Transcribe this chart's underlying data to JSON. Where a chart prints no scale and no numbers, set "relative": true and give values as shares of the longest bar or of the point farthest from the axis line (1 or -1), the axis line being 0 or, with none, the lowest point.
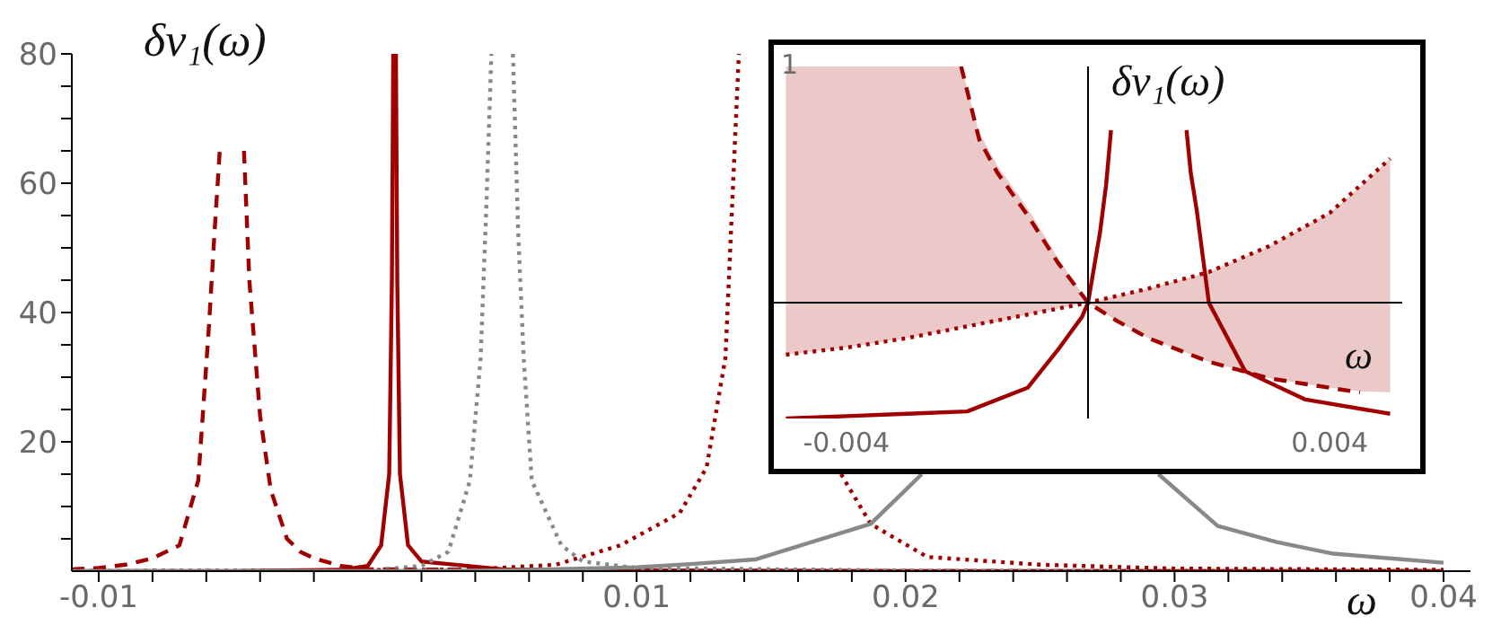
{
  "chart_data": [
    {
      "type": "line",
      "xlabel": "ω",
      "ylabel": "δν₁(ω)",
      "xlim": [
        -0.011,
        0.041
      ],
      "ylim": [
        0,
        80
      ],
      "xticks": [
        -0.01,
        {
          "value": -0.008,
          "label": null
        },
        {
          "value": -0.006,
          "label": null
        },
        {
          "value": -0.004,
          "label": null
        },
        {
          "value": -0.002,
          "label": null
        },
        {
          "value": 0.002,
          "label": null
        },
        {
          "value": 0.004,
          "label": null
        },
        {
          "value": 0.006,
          "label": null
        },
        {
          "value": 0.008,
          "label": null
        },
        0.01,
        {
          "value": 0.012,
          "label": null
        },
        {
          "value": 0.014,
          "label": null
        },
        {
          "value": 0.016,
          "label": null
        },
        {
          "value": 0.018,
          "label": null
        },
        0.02,
        {
          "value": 0.022,
          "label": null
        },
        {
          "value": 0.024,
          "label": null
        },
        {
          "value": 0.026,
          "label": null
        },
        {
          "value": 0.028,
          "label": null
        },
        0.03,
        {
          "value": 0.032,
          "label": null
        },
        {
          "value": 0.034,
          "label": null
        },
        {
          "value": 0.036,
          "label": null
        },
        {
          "value": 0.038,
          "label": null
        },
        0.04
      ],
      "yticks": [
        {
          "value": 5,
          "label": null
        },
        {
          "value": 10,
          "label": null
        },
        {
          "value": 15,
          "label": null
        },
        20,
        {
          "value": 25,
          "label": null
        },
        {
          "value": 30,
          "label": null
        },
        {
          "value": 35,
          "label": null
        },
        40,
        {
          "value": 45,
          "label": null
        },
        {
          "value": 50,
          "label": null
        },
        {
          "value": 55,
          "label": null
        },
        60,
        {
          "value": 65,
          "label": null
        },
        {
          "value": 70,
          "label": null
        },
        {
          "value": 75,
          "label": null
        },
        80
      ],
      "series": [
        {
          "color": "#a00000",
          "line_style": "dashed",
          "x": [
            -0.011,
            -0.01,
            -0.009,
            -0.008,
            -0.007,
            -0.0063,
            -0.0059,
            -0.0057,
            -0.0055,
            -0.005,
            -0.0046,
            -0.0044,
            -0.004,
            -0.0036,
            -0.003,
            -0.0025,
            -0.002,
            -0.001,
            0,
            0.01,
            0.02,
            0.03,
            0.04
          ],
          "values": [
            0.3,
            0.5,
            1,
            2,
            4,
            14,
            38,
            52,
            65,
            null,
            65,
            45,
            24,
            12.5,
            5,
            3,
            2,
            0.8,
            0.3,
            0.1,
            0,
            0,
            0
          ]
        },
        {
          "color": "#a00000",
          "line_style": "solid",
          "x": [
            -0.011,
            -0.005,
            -0.001,
            0,
            0.0005,
            0.0008,
            0.0009,
            0.00095,
            0.00105,
            0.0011,
            0.0012,
            0.0015,
            0.002,
            0.005,
            0.01,
            0.02,
            0.03,
            0.04
          ],
          "values": [
            0,
            0,
            0.2,
            0.8,
            4,
            15,
            45,
            80,
            80,
            45,
            15,
            4,
            1.5,
            0.3,
            0.1,
            0,
            0,
            0
          ]
        },
        {
          "color": "#888888",
          "line_style": "dotted",
          "x": [
            -0.011,
            0,
            0.002,
            0.003,
            0.0038,
            0.0042,
            0.0044,
            0.0046,
            0.005,
            0.0054,
            0.0056,
            0.0058,
            0.0061,
            0.0072,
            0.008,
            0.01,
            0.02,
            0.03,
            0.04
          ],
          "values": [
            0,
            0.1,
            0.8,
            3,
            14,
            33,
            55,
            80,
            null,
            80,
            52,
            33,
            14,
            4,
            1.5,
            0.5,
            0.1,
            0,
            0
          ]
        },
        {
          "color": "#a00000",
          "line_style": "dotted",
          "x": [
            -0.011,
            0,
            0.004,
            0.007,
            0.0094,
            0.0116,
            0.0126,
            0.0133,
            0.0138,
            0.015,
            0.0176,
            0.0187,
            0.0208,
            0.025,
            0.03,
            0.04
          ],
          "values": [
            0,
            0.1,
            0.3,
            1,
            4,
            9,
            16,
            33,
            80,
            null,
            15,
            7.3,
            2.2,
            1,
            0.4,
            0.2
          ]
        },
        {
          "color": "#888888",
          "line_style": "solid",
          "x": [
            -0.011,
            0,
            0.005,
            0.01,
            0.012,
            0.0144,
            0.0165,
            0.0187,
            0.0206,
            0.025,
            0.0294,
            0.0316,
            0.0338,
            0.0359,
            0.04
          ],
          "values": [
            0,
            0,
            0.1,
            0.6,
            1.1,
            1.8,
            4.5,
            7.3,
            15,
            null,
            15,
            7,
            4.5,
            2.7,
            1.3
          ]
        }
      ]
    },
    {
      "type": "line",
      "relative": true,
      "xlabel": "ω",
      "ylabel": "δν₁(ω)",
      "annotations": [
        "1"
      ],
      "xlim": [
        -0.0052,
        0.0052
      ],
      "xticks": [
        -0.004,
        0.004
      ],
      "series": [
        {
          "color": "#a00000",
          "line_style": "dashed",
          "x": [
            -0.005,
            -0.004,
            -0.003,
            -0.0021,
            -0.0018,
            -0.0015,
            -0.001,
            -0.0005,
            0,
            0.0005,
            0.001,
            0.002,
            0.003,
            0.004,
            0.0045,
            0.005
          ],
          "values": [
            null,
            null,
            null,
            1,
            0.69,
            0.55,
            0.37,
            0.17,
            0,
            -0.08,
            -0.15,
            -0.25,
            -0.32,
            -0.36,
            -0.38,
            null
          ],
          "lower": [
            -0.22,
            -0.19,
            -0.15,
            -0.105,
            -0.09,
            -0.08,
            -0.05,
            -0.025,
            0,
            -0.08,
            -0.15,
            -0.25,
            -0.32,
            -0.36,
            -0.375,
            -0.38
          ],
          "upper": [
            1,
            1,
            1,
            1,
            0.72,
            0.58,
            0.4,
            0.19,
            0,
            0.03,
            0.06,
            0.13,
            0.24,
            0.38,
            0.49,
            0.61
          ]
        },
        {
          "color": "#a00000",
          "line_style": "dotted",
          "x": [
            -0.005,
            -0.004,
            -0.003,
            -0.002,
            -0.001,
            0,
            0.001,
            0.002,
            0.003,
            0.004,
            0.005
          ],
          "values": [
            -0.22,
            -0.19,
            -0.15,
            -0.1,
            -0.05,
            0,
            0.06,
            0.13,
            0.24,
            0.38,
            0.61
          ]
        },
        {
          "color": "#a00000",
          "line_style": "solid",
          "x": [
            -0.005,
            -0.004,
            -0.003,
            -0.002,
            -0.001,
            -0.0005,
            -0.0003,
            -0.0001,
            0,
            0.0002,
            0.0003,
            0.00038,
            0.001,
            0.00163,
            0.0017,
            0.0018,
            0.002,
            0.0026,
            0.0036,
            0.005
          ],
          "values": [
            -0.49,
            -0.48,
            -0.47,
            -0.46,
            -0.36,
            -0.2,
            -0.13,
            -0.06,
            0,
            0.3,
            0.5,
            0.73,
            null,
            0.73,
            0.55,
            0.39,
            0,
            -0.29,
            -0.41,
            -0.47
          ]
        }
      ]
    }
  ]
}
